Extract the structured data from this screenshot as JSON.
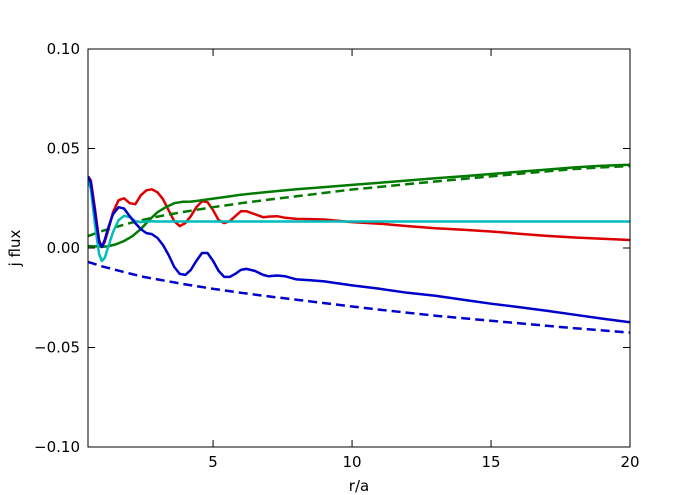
{
  "chart_data": {
    "type": "line",
    "title": "",
    "xlabel": "r/a",
    "ylabel": "j flux",
    "xlim": [
      0.5,
      20
    ],
    "ylim": [
      -0.1,
      0.1
    ],
    "x_ticks": [
      5,
      10,
      15,
      20
    ],
    "x_tick_labels": [
      "5",
      "10",
      "15",
      "20"
    ],
    "y_ticks": [
      0.1,
      0.05,
      0.0,
      -0.05,
      -0.1
    ],
    "y_tick_labels": [
      "0.10",
      "0.05",
      "0.00",
      "−0.05",
      "−0.10"
    ],
    "grid": false,
    "series": [
      {
        "color": "#dd0000",
        "style": "solid",
        "x": [
          0.5,
          0.6,
          0.75,
          0.9,
          1.0,
          1.1,
          1.25,
          1.4,
          1.6,
          1.8,
          2.0,
          2.2,
          2.4,
          2.6,
          2.8,
          3.0,
          3.2,
          3.4,
          3.6,
          3.8,
          4.0,
          4.2,
          4.4,
          4.6,
          4.8,
          5.0,
          5.2,
          5.4,
          5.6,
          5.8,
          6.0,
          6.2,
          6.5,
          6.8,
          7.0,
          7.3,
          7.6,
          8.0,
          8.5,
          9.0,
          10.0,
          11.0,
          12.0,
          13.0,
          14.0,
          15.0,
          16.0,
          17.0,
          18.0,
          19.0,
          20.0
        ],
        "y": [
          0.036,
          0.034,
          0.02,
          0.004,
          0.0005,
          0.003,
          0.01,
          0.018,
          0.024,
          0.025,
          0.0225,
          0.022,
          0.0265,
          0.029,
          0.0295,
          0.028,
          0.0245,
          0.019,
          0.0135,
          0.011,
          0.0125,
          0.016,
          0.0205,
          0.0235,
          0.023,
          0.019,
          0.014,
          0.0125,
          0.0135,
          0.016,
          0.0185,
          0.0185,
          0.017,
          0.0155,
          0.0158,
          0.016,
          0.0152,
          0.0146,
          0.0145,
          0.0143,
          0.013,
          0.0122,
          0.011,
          0.0099,
          0.0092,
          0.0083,
          0.0072,
          0.0061,
          0.0053,
          0.0046,
          0.004
        ]
      },
      {
        "color": "#007a00",
        "style": "solid",
        "x": [
          0.5,
          0.7,
          0.9,
          1.0,
          1.2,
          1.5,
          1.8,
          2.1,
          2.4,
          2.7,
          3.0,
          3.3,
          3.6,
          3.9,
          4.2,
          4.5,
          5.0,
          5.5,
          6.0,
          7.0,
          8.0,
          9.0,
          10.0,
          11.0,
          12.0,
          13.0,
          14.0,
          15.0,
          16.0,
          17.0,
          18.0,
          19.0,
          20.0
        ],
        "y": [
          0.001,
          0.0008,
          0.0008,
          0.0006,
          0.0008,
          0.0018,
          0.0035,
          0.006,
          0.0095,
          0.014,
          0.018,
          0.0205,
          0.0225,
          0.0232,
          0.0233,
          0.0238,
          0.0248,
          0.0258,
          0.0268,
          0.0282,
          0.0295,
          0.0306,
          0.0317,
          0.0328,
          0.0339,
          0.035,
          0.0361,
          0.0372,
          0.0383,
          0.0394,
          0.0405,
          0.0413,
          0.0418
        ]
      },
      {
        "color": "#007a00",
        "style": "dashed",
        "x": [
          0.5,
          1.0,
          1.5,
          2.0,
          2.5,
          3.0,
          4.0,
          5.0,
          6.0,
          7.0,
          8.0,
          9.0,
          10.0,
          11.0,
          12.0,
          13.0,
          14.0,
          15.0,
          16.0,
          17.0,
          18.0,
          19.0,
          20.0
        ],
        "y": [
          0.006,
          0.0085,
          0.0105,
          0.0125,
          0.0142,
          0.0158,
          0.0183,
          0.0205,
          0.0225,
          0.0243,
          0.026,
          0.0277,
          0.0294,
          0.0307,
          0.0321,
          0.0334,
          0.0347,
          0.036,
          0.0373,
          0.0385,
          0.0397,
          0.0405,
          0.0412
        ]
      },
      {
        "color": "#00bcbc",
        "style": "solid",
        "x": [
          0.5,
          0.6,
          0.75,
          0.9,
          1.0,
          1.1,
          1.25,
          1.4,
          1.6,
          1.8,
          2.0,
          2.2,
          2.4,
          2.6,
          2.8,
          3.0,
          3.5,
          4.0,
          5.0,
          6.0,
          8.0,
          10.0,
          12.0,
          14.0,
          16.0,
          18.0,
          20.0
        ],
        "y": [
          0.034,
          0.03,
          0.012,
          -0.003,
          -0.0065,
          -0.005,
          0.0015,
          0.008,
          0.014,
          0.0162,
          0.0155,
          0.0135,
          0.013,
          0.0133,
          0.0134,
          0.0133,
          0.0133,
          0.0133,
          0.0133,
          0.0133,
          0.0133,
          0.0133,
          0.0133,
          0.0133,
          0.0133,
          0.0133,
          0.0133
        ]
      },
      {
        "color": "#0000cc",
        "style": "solid",
        "x": [
          0.5,
          0.6,
          0.75,
          0.9,
          1.0,
          1.1,
          1.25,
          1.4,
          1.6,
          1.8,
          2.0,
          2.2,
          2.4,
          2.6,
          2.8,
          3.0,
          3.2,
          3.4,
          3.6,
          3.8,
          4.0,
          4.2,
          4.4,
          4.6,
          4.8,
          5.0,
          5.2,
          5.4,
          5.6,
          5.8,
          6.0,
          6.2,
          6.5,
          6.8,
          7.0,
          7.3,
          7.6,
          8.0,
          8.5,
          9.0,
          10.0,
          11.0,
          12.0,
          13.0,
          14.0,
          15.0,
          16.0,
          17.0,
          18.0,
          19.0,
          20.0
        ],
        "y": [
          0.036,
          0.033,
          0.018,
          0.003,
          0.0005,
          0.004,
          0.011,
          0.017,
          0.0205,
          0.0198,
          0.016,
          0.0125,
          0.0095,
          0.0075,
          0.007,
          0.005,
          0.0015,
          -0.0035,
          -0.0095,
          -0.013,
          -0.0135,
          -0.011,
          -0.0065,
          -0.0025,
          -0.0025,
          -0.0065,
          -0.0115,
          -0.0145,
          -0.0145,
          -0.013,
          -0.011,
          -0.0105,
          -0.0115,
          -0.0135,
          -0.0142,
          -0.0138,
          -0.0142,
          -0.0158,
          -0.0162,
          -0.0168,
          -0.0188,
          -0.0205,
          -0.0225,
          -0.024,
          -0.026,
          -0.028,
          -0.0297,
          -0.0315,
          -0.0335,
          -0.0355,
          -0.0373
        ]
      },
      {
        "color": "#0000cc",
        "style": "dashed",
        "x": [
          0.5,
          1.0,
          1.5,
          2.0,
          2.5,
          3.0,
          4.0,
          5.0,
          6.0,
          7.0,
          8.0,
          9.0,
          10.0,
          11.0,
          12.0,
          13.0,
          14.0,
          15.0,
          16.0,
          17.0,
          18.0,
          19.0,
          20.0
        ],
        "y": [
          -0.007,
          -0.0092,
          -0.011,
          -0.0128,
          -0.0145,
          -0.0158,
          -0.0183,
          -0.0205,
          -0.0225,
          -0.0243,
          -0.026,
          -0.0277,
          -0.0294,
          -0.031,
          -0.0325,
          -0.034,
          -0.0353,
          -0.0366,
          -0.0378,
          -0.0391,
          -0.0403,
          -0.0414,
          -0.0425
        ]
      }
    ]
  }
}
